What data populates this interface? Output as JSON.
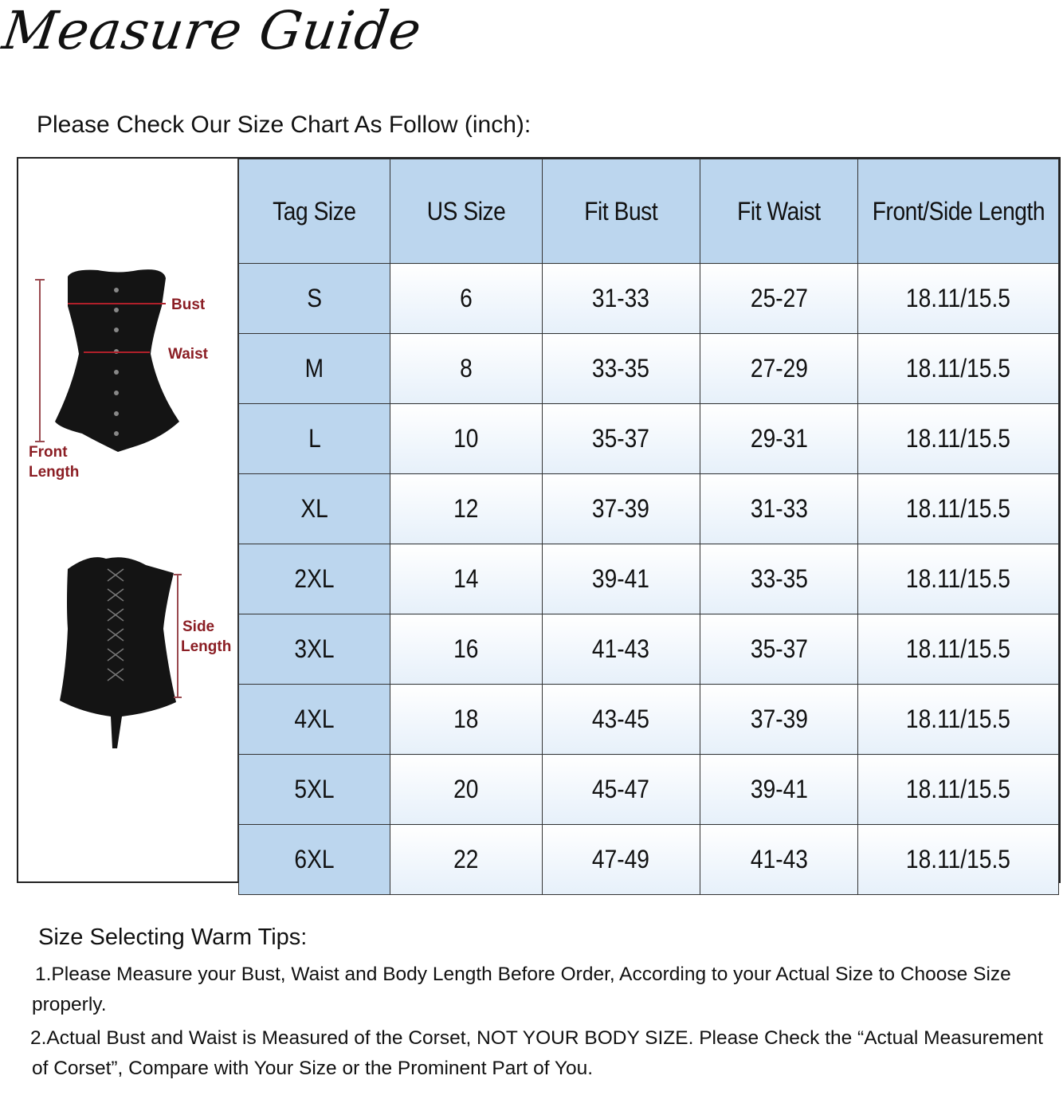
{
  "header": {
    "title": "Measure Guide",
    "subtitle": "Please Check Our Size Chart As Follow (inch):"
  },
  "diagram": {
    "front_labels": {
      "bust": "Bust",
      "waist": "Waist",
      "front_length_1": "Front",
      "front_length_2": "Length"
    },
    "back_labels": {
      "side_length_1": "Side",
      "side_length_2": "Length"
    },
    "accent_color": "#8b1e24"
  },
  "table": {
    "columns": [
      "Tag Size",
      "US Size",
      "Fit Bust",
      "Fit Waist",
      "Front/Side Length"
    ],
    "rows": [
      [
        "S",
        "6",
        "31-33",
        "25-27",
        "18.11/15.5"
      ],
      [
        "M",
        "8",
        "33-35",
        "27-29",
        "18.11/15.5"
      ],
      [
        "L",
        "10",
        "35-37",
        "29-31",
        "18.11/15.5"
      ],
      [
        "XL",
        "12",
        "37-39",
        "31-33",
        "18.11/15.5"
      ],
      [
        "2XL",
        "14",
        "39-41",
        "33-35",
        "18.11/15.5"
      ],
      [
        "3XL",
        "16",
        "41-43",
        "35-37",
        "18.11/15.5"
      ],
      [
        "4XL",
        "18",
        "43-45",
        "37-39",
        "18.11/15.5"
      ],
      [
        "5XL",
        "20",
        "45-47",
        "39-41",
        "18.11/15.5"
      ],
      [
        "6XL",
        "22",
        "47-49",
        "41-43",
        "18.11/15.5"
      ]
    ],
    "header_color": "#bcd6ee"
  },
  "tips": {
    "heading": "Size Selecting Warm Tips:",
    "items": [
      "1.Please Measure your Bust, Waist and Body Length Before Order, According to your Actual Size to Choose Size properly.",
      "2.Actual Bust and Waist is Measured of the Corset, NOT YOUR BODY SIZE. Please Check the “Actual Measurement of Corset”, Compare with Your Size or the Prominent Part of You."
    ]
  }
}
